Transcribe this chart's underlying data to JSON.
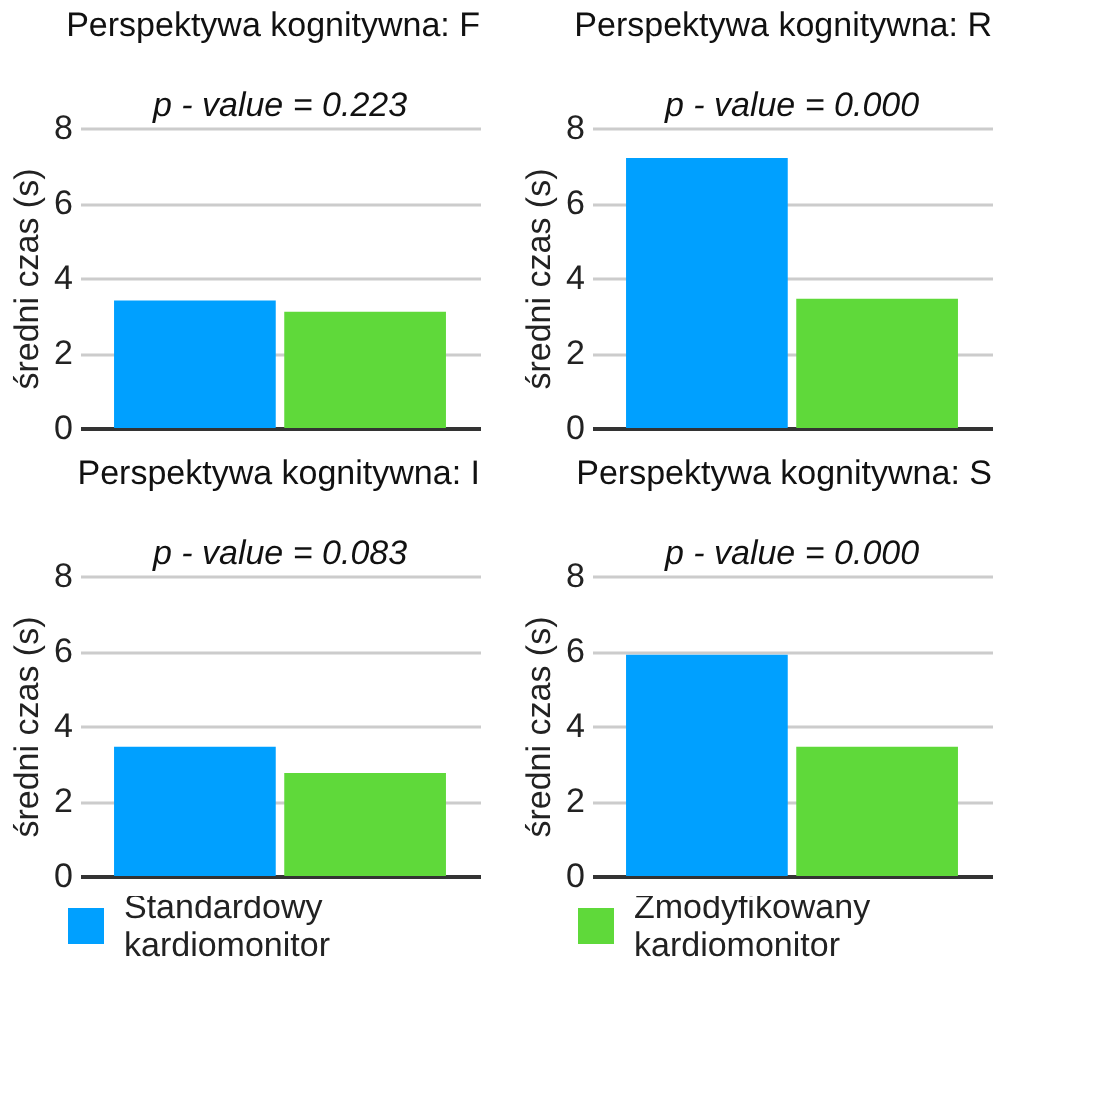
{
  "chart_data": [
    {
      "type": "bar",
      "title": "Perspektywa kognitywna: F",
      "annotations": [
        "p - value = 0.223"
      ],
      "ylabel": "średni czas (s)",
      "categories": [
        null
      ],
      "series": [
        {
          "name": "Standardowy kardiomonitor",
          "color": "#00a0ff",
          "values": [
            3.4
          ]
        },
        {
          "name": "Zmodyfikowany kardiomonitor",
          "color": "#5fd93a",
          "values": [
            3.1
          ]
        }
      ],
      "ylim": [
        0,
        8
      ],
      "yticks": [
        0,
        2,
        4,
        6,
        8
      ],
      "grid": "y",
      "legend": "bottom"
    },
    {
      "type": "bar",
      "title": "Perspektywa kognitywna: R",
      "annotations": [
        "p - value = 0.000"
      ],
      "ylabel": "średni czas (s)",
      "categories": [
        null
      ],
      "series": [
        {
          "name": "Standardowy kardiomonitor",
          "color": "#00a0ff",
          "values": [
            7.2
          ]
        },
        {
          "name": "Zmodyfikowany kardiomonitor",
          "color": "#5fd93a",
          "values": [
            3.45
          ]
        }
      ],
      "ylim": [
        0,
        8
      ],
      "yticks": [
        0,
        2,
        4,
        6,
        8
      ],
      "grid": "y",
      "legend": "bottom"
    },
    {
      "type": "bar",
      "title": "Perspektywa kognitywna: I",
      "annotations": [
        "p - value = 0.083"
      ],
      "ylabel": "średni czas (s)",
      "categories": [
        null
      ],
      "series": [
        {
          "name": "Standardowy kardiomonitor",
          "color": "#00a0ff",
          "values": [
            3.45
          ]
        },
        {
          "name": "Zmodyfikowany kardiomonitor",
          "color": "#5fd93a",
          "values": [
            2.75
          ]
        }
      ],
      "ylim": [
        0,
        8
      ],
      "yticks": [
        0,
        2,
        4,
        6,
        8
      ],
      "grid": "y",
      "legend": "bottom"
    },
    {
      "type": "bar",
      "title": "Perspektywa kognitywna: S",
      "annotations": [
        "p - value = 0.000"
      ],
      "ylabel": "średni czas (s)",
      "categories": [
        null
      ],
      "series": [
        {
          "name": "Standardowy kardiomonitor",
          "color": "#00a0ff",
          "values": [
            5.9
          ]
        },
        {
          "name": "Zmodyfikowany kardiomonitor",
          "color": "#5fd93a",
          "values": [
            3.45
          ]
        }
      ],
      "ylim": [
        0,
        8
      ],
      "yticks": [
        0,
        2,
        4,
        6,
        8
      ],
      "grid": "y",
      "legend": "bottom"
    }
  ]
}
